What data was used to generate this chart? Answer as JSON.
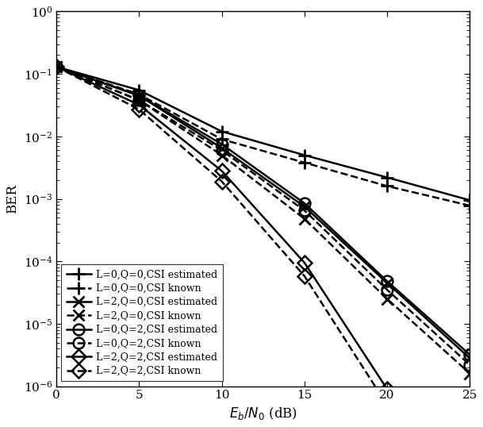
{
  "x": [
    0,
    5,
    10,
    15,
    20,
    25
  ],
  "series": [
    {
      "label": "L=0,Q=0,CSI estimated",
      "style": "solid",
      "marker": "+",
      "color": "black",
      "linewidth": 1.8,
      "markersize": 11,
      "markeredgewidth": 2.0,
      "y": [
        0.13,
        0.055,
        0.012,
        0.005,
        0.0022,
        0.00095
      ]
    },
    {
      "label": "L=0,Q=0,CSI known",
      "style": "dashed",
      "marker": "+",
      "color": "black",
      "linewidth": 1.8,
      "markersize": 11,
      "markeredgewidth": 2.0,
      "y": [
        0.13,
        0.047,
        0.009,
        0.0038,
        0.0016,
        0.00078
      ]
    },
    {
      "label": "L=2,Q=0,CSI estimated",
      "style": "solid",
      "marker": "x",
      "color": "black",
      "linewidth": 1.8,
      "markersize": 10,
      "markeredgewidth": 2.0,
      "y": [
        0.13,
        0.045,
        0.0065,
        0.00075,
        4.5e-05,
        2.8e-06
      ]
    },
    {
      "label": "L=2,Q=0,CSI known",
      "style": "dashed",
      "marker": "x",
      "color": "black",
      "linewidth": 1.8,
      "markersize": 10,
      "markeredgewidth": 2.0,
      "y": [
        0.13,
        0.038,
        0.005,
        0.00048,
        2.5e-05,
        1.6e-06
      ]
    },
    {
      "label": "L=0,Q=2,CSI estimated",
      "style": "solid",
      "marker": "o",
      "color": "black",
      "linewidth": 1.8,
      "markersize": 10,
      "markeredgewidth": 1.8,
      "y": [
        0.13,
        0.045,
        0.0075,
        0.00085,
        4.8e-05,
        3.2e-06
      ]
    },
    {
      "label": "L=0,Q=2,CSI known",
      "style": "dashed",
      "marker": "o",
      "color": "black",
      "linewidth": 1.8,
      "markersize": 10,
      "markeredgewidth": 1.8,
      "y": [
        0.13,
        0.038,
        0.006,
        0.00065,
        3.5e-05,
        2.2e-06
      ]
    },
    {
      "label": "L=2,Q=2,CSI estimated",
      "style": "solid",
      "marker": "D",
      "color": "black",
      "linewidth": 1.8,
      "markersize": 9,
      "markeredgewidth": 1.8,
      "y": [
        0.13,
        0.032,
        0.0028,
        9.5e-05,
        9e-07,
        2.8e-08
      ]
    },
    {
      "label": "L=2,Q=2,CSI known",
      "style": "dashed",
      "marker": "D",
      "color": "black",
      "linewidth": 1.8,
      "markersize": 9,
      "markeredgewidth": 1.8,
      "y": [
        0.13,
        0.027,
        0.0019,
        5.8e-05,
        5e-07,
        1.2e-08
      ]
    }
  ],
  "xlabel": "$E_b/N_0$ (dB)",
  "ylabel": "BER",
  "xlim": [
    0,
    25
  ],
  "ylim": [
    1e-06,
    1.0
  ],
  "xticks": [
    0,
    5,
    10,
    15,
    20,
    25
  ],
  "legend_loc": "lower left",
  "legend_fontsize": 9,
  "background_color": "#ffffff",
  "figsize": [
    6.09,
    5.38
  ],
  "dpi": 100
}
